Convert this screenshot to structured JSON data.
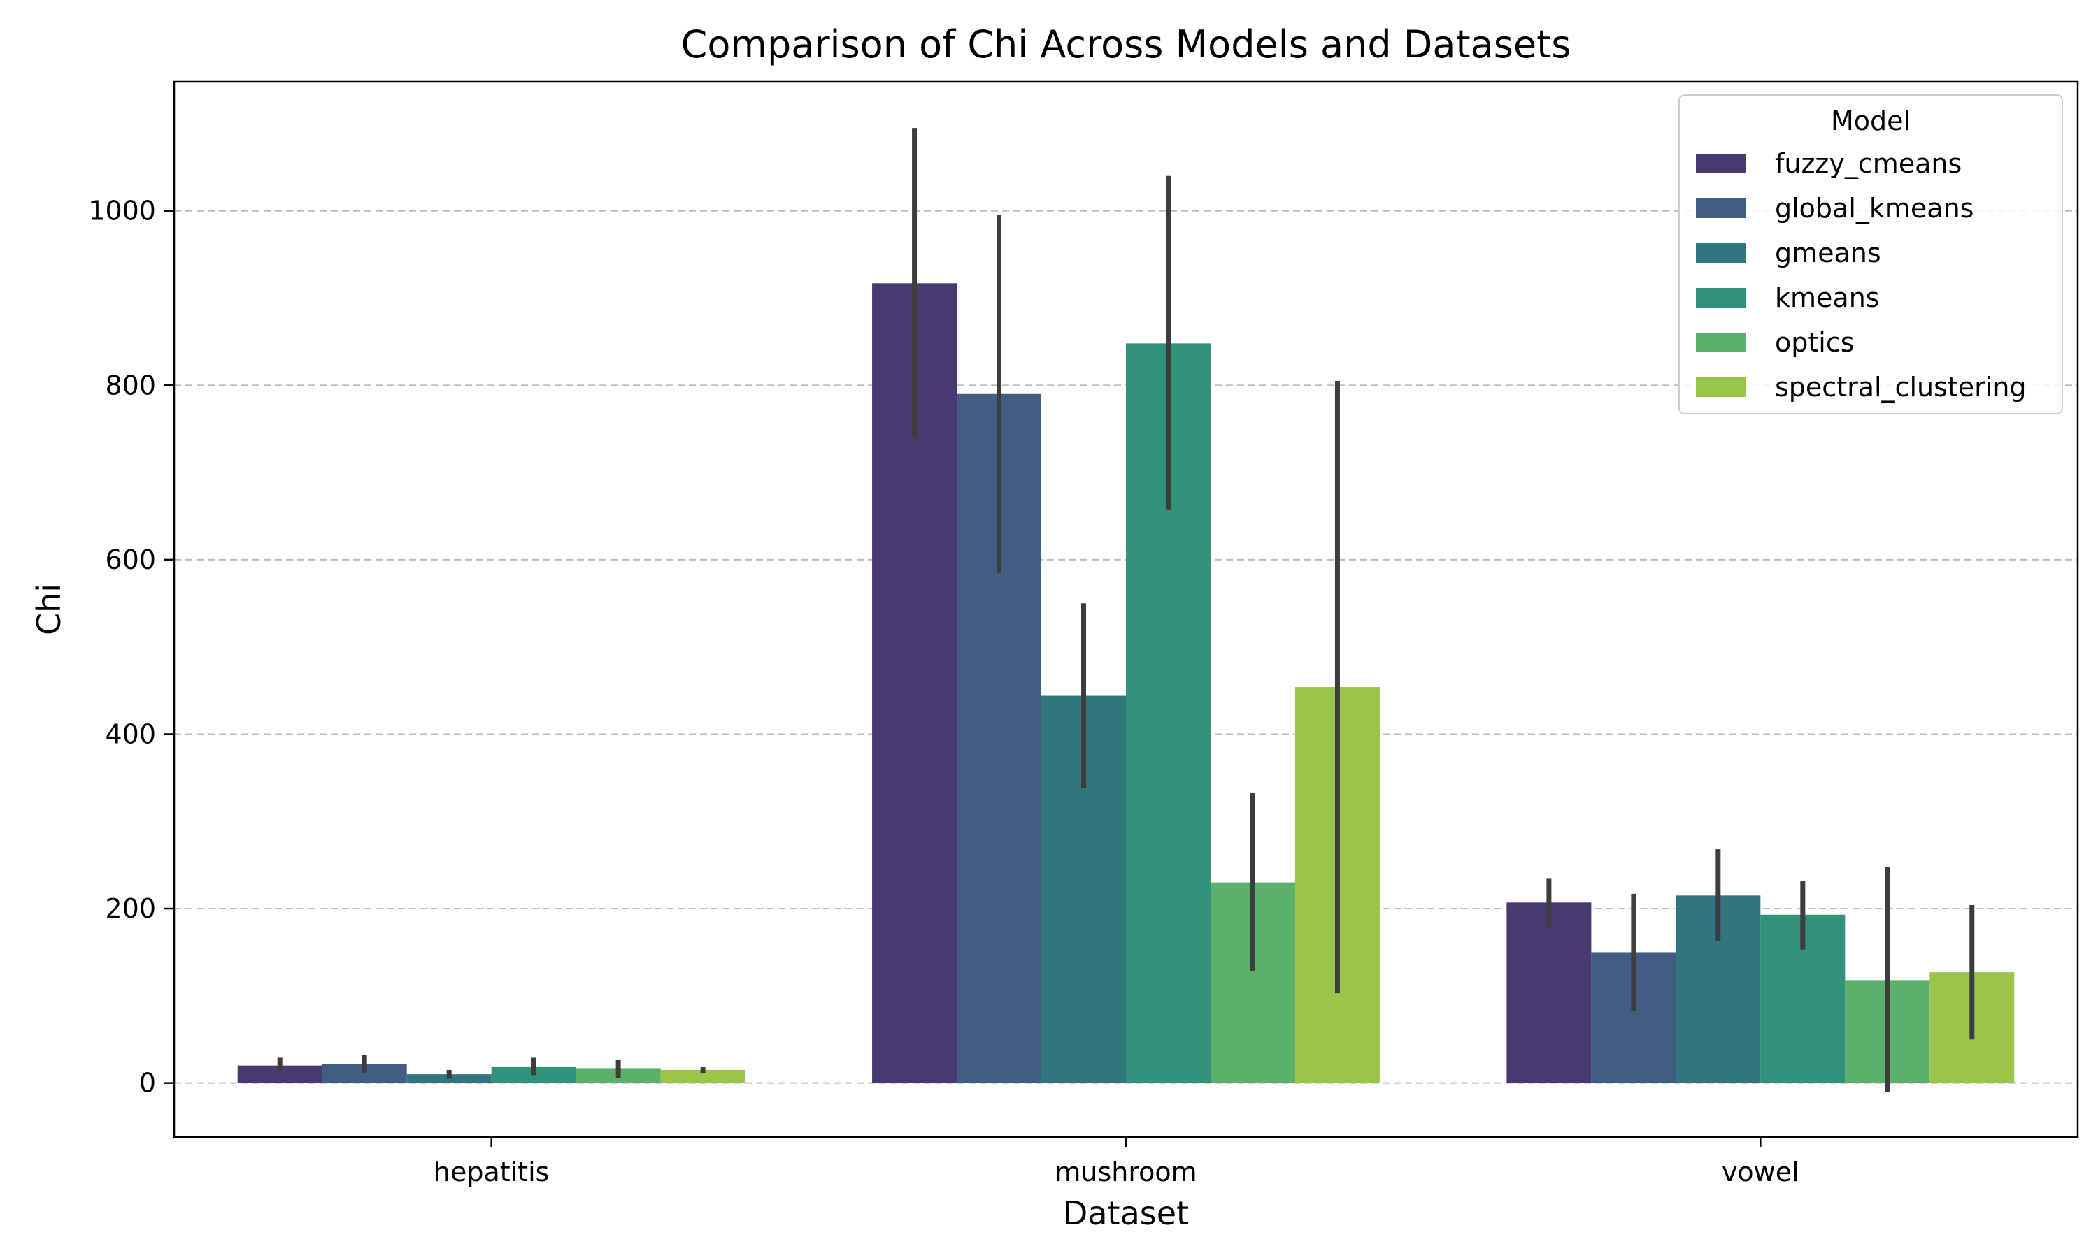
{
  "chart_data": {
    "type": "bar",
    "title": "Comparison of Chi Across Models and Datasets",
    "xlabel": "Dataset",
    "ylabel": "Chi",
    "categories": [
      "hepatitis",
      "mushroom",
      "vowel"
    ],
    "ylim": [
      -62,
      1148
    ],
    "yticks": [
      0,
      200,
      400,
      600,
      800,
      1000
    ],
    "grid": {
      "axis": "y",
      "style": "dashed"
    },
    "legend": {
      "title": "Model",
      "position": "top-right"
    },
    "series": [
      {
        "name": "fuzzy_cmeans",
        "color": "#483a71",
        "values": [
          20,
          917,
          207
        ],
        "error_low": [
          13,
          740,
          178
        ],
        "error_high": [
          29,
          1095,
          235
        ]
      },
      {
        "name": "global_kmeans",
        "color": "#425d82",
        "values": [
          22,
          790,
          150
        ],
        "error_low": [
          12,
          585,
          83
        ],
        "error_high": [
          32,
          995,
          217
        ]
      },
      {
        "name": "gmeans",
        "color": "#33757f",
        "values": [
          10,
          444,
          215
        ],
        "error_low": [
          5,
          338,
          163
        ],
        "error_high": [
          15,
          550,
          268
        ]
      },
      {
        "name": "kmeans",
        "color": "#32917b",
        "values": [
          19,
          848,
          193
        ],
        "error_low": [
          9,
          657,
          153
        ],
        "error_high": [
          29,
          1040,
          232
        ]
      },
      {
        "name": "optics",
        "color": "#5bb06b",
        "values": [
          17,
          230,
          118
        ],
        "error_low": [
          6,
          128,
          -10
        ],
        "error_high": [
          27,
          333,
          248
        ]
      },
      {
        "name": "spectral_clustering",
        "color": "#9bc54a",
        "values": [
          15,
          454,
          127
        ],
        "error_low": [
          11,
          103,
          50
        ],
        "error_high": [
          19,
          805,
          204
        ]
      }
    ]
  }
}
